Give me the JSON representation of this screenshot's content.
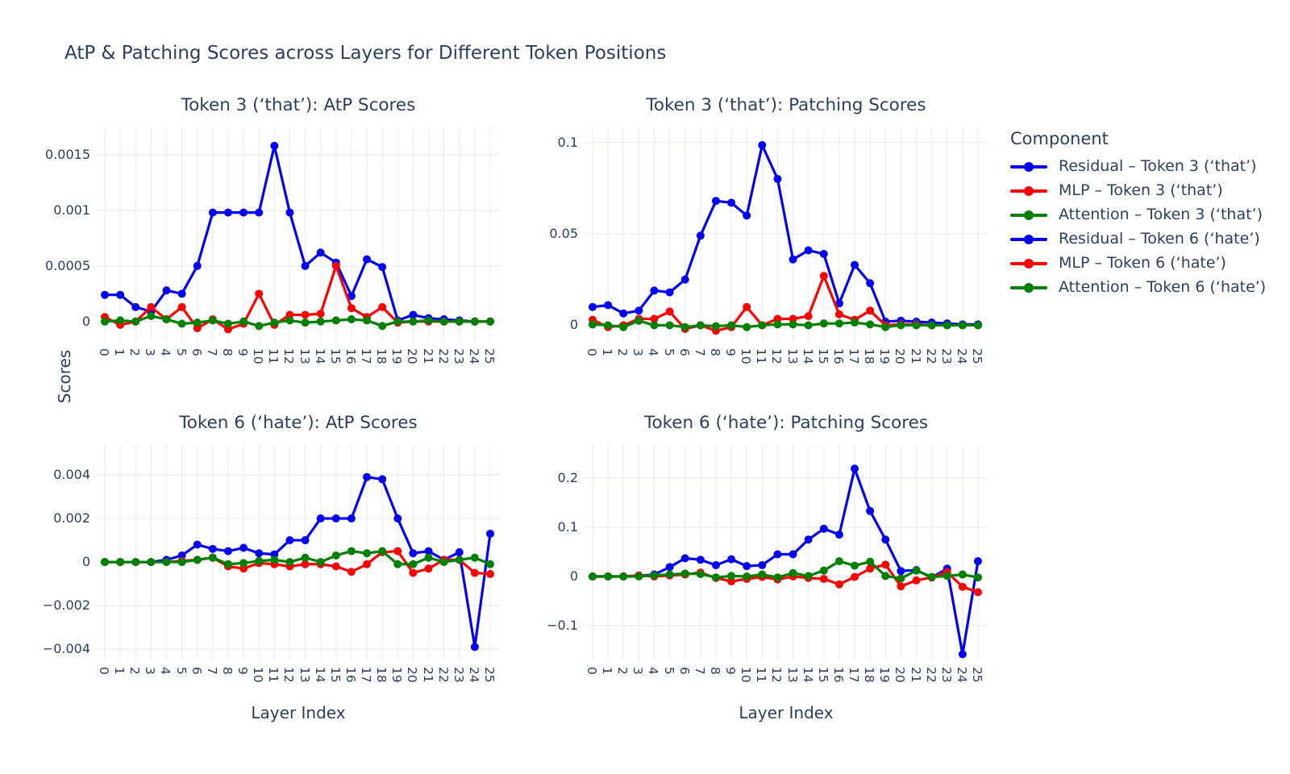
{
  "page": {
    "title_main": "AtP & Patching Scores across Layers for Different Token Positions"
  },
  "colors": {
    "residual": "#0000f5",
    "mlp": "#ff0000",
    "attention": "#008000",
    "text": "#2a3f5f",
    "grid": "#e8edf6"
  },
  "axis": {
    "x_label": "Layer Index",
    "y_label": "Scores"
  },
  "legend": {
    "title": "Component",
    "items": [
      {
        "label": "Residual – Token 3 (‘that’)",
        "color_key": "residual"
      },
      {
        "label": "MLP – Token 3 (‘that’)",
        "color_key": "mlp"
      },
      {
        "label": "Attention – Token 3 (‘that’)",
        "color_key": "attention"
      },
      {
        "label": "Residual – Token 6 (‘hate’)",
        "color_key": "residual"
      },
      {
        "label": "MLP – Token 6 (‘hate’)",
        "color_key": "mlp"
      },
      {
        "label": "Attention – Token 6 (‘hate’)",
        "color_key": "attention"
      }
    ]
  },
  "chart_data": [
    {
      "id": "token3-atp",
      "type": "line",
      "title": "Token 3 (‘that’): AtP Scores",
      "xlabel": "Layer Index",
      "x": [
        0,
        1,
        2,
        3,
        4,
        5,
        6,
        7,
        8,
        9,
        10,
        11,
        12,
        13,
        14,
        15,
        16,
        17,
        18,
        19,
        20,
        21,
        22,
        23,
        24,
        25
      ],
      "ylim": [
        -0.00019,
        0.001746
      ],
      "grid": true,
      "yticks": [
        {
          "v": 0,
          "label": "0"
        },
        {
          "v": 0.0005,
          "label": "0.0005"
        },
        {
          "v": 0.001,
          "label": "0.001"
        },
        {
          "v": 0.0015,
          "label": "0.0015"
        }
      ],
      "series": [
        {
          "name": "Residual – Token 3 (‘that’)",
          "color_key": "residual",
          "values": [
            0.00024,
            0.00024,
            0.00013,
            9e-05,
            0.00028,
            0.00025,
            0.0005,
            0.00098,
            0.00098,
            0.00098,
            0.00098,
            0.00158,
            0.00098,
            0.0005,
            0.00062,
            0.00053,
            0.00023,
            0.00056,
            0.00049,
            1e-05,
            6e-05,
            3e-05,
            2e-05,
            1e-05,
            0,
            0
          ]
        },
        {
          "name": "MLP – Token 3 (‘that’)",
          "color_key": "mlp",
          "values": [
            4e-05,
            -3e-05,
            0,
            0.00013,
            2e-05,
            0.00013,
            -6e-05,
            2e-05,
            -7e-05,
            -2e-05,
            0.00025,
            -3e-05,
            6e-05,
            6e-05,
            7e-05,
            0.0005,
            0.00012,
            4e-05,
            0.00013,
            -1e-05,
            0,
            0,
            0,
            0,
            0,
            0
          ]
        },
        {
          "name": "Attention – Token 3 (‘that’)",
          "color_key": "attention",
          "values": [
            0,
            1e-05,
            0,
            5e-05,
            2e-05,
            -2e-05,
            -1e-05,
            1e-05,
            -2e-05,
            0,
            -4e-05,
            -1e-05,
            1e-05,
            -1e-05,
            0,
            1e-05,
            2e-05,
            1e-05,
            -4e-05,
            0,
            0,
            1e-05,
            0,
            0,
            0,
            0
          ]
        }
      ]
    },
    {
      "id": "token3-patching",
      "type": "line",
      "title": "Token 3 (‘that’): Patching Scores",
      "xlabel": "Layer Index",
      "x": [
        0,
        1,
        2,
        3,
        4,
        5,
        6,
        7,
        8,
        9,
        10,
        11,
        12,
        13,
        14,
        15,
        16,
        17,
        18,
        19,
        20,
        21,
        22,
        23,
        24,
        25
      ],
      "ylim": [
        -0.0095,
        0.1082
      ],
      "grid": true,
      "yticks": [
        {
          "v": 0,
          "label": "0"
        },
        {
          "v": 0.05,
          "label": "0.05"
        },
        {
          "v": 0.1,
          "label": "0.1"
        }
      ],
      "series": [
        {
          "name": "Residual – Token 3 (‘that’)",
          "color_key": "residual",
          "values": [
            0.01,
            0.011,
            0.0065,
            0.008,
            0.019,
            0.018,
            0.025,
            0.049,
            0.068,
            0.067,
            0.06,
            0.0985,
            0.08,
            0.036,
            0.041,
            0.039,
            0.012,
            0.033,
            0.023,
            0.002,
            0.0025,
            0.002,
            0.0015,
            0.001,
            0.0005,
            0.0005
          ]
        },
        {
          "name": "MLP – Token 3 (‘that’)",
          "color_key": "mlp",
          "values": [
            0.003,
            -0.001,
            0,
            0.0035,
            0.0035,
            0.0075,
            -0.002,
            0,
            -0.003,
            -0.001,
            0.01,
            0,
            0.0035,
            0.0035,
            0.005,
            0.027,
            0.006,
            0.003,
            0.008,
            0,
            0.0005,
            0.0005,
            0,
            0,
            0,
            0
          ]
        },
        {
          "name": "Attention – Token 3 (‘that’)",
          "color_key": "attention",
          "values": [
            0.0005,
            0,
            -0.001,
            0.0025,
            0,
            0,
            -0.001,
            0,
            -0.0005,
            0,
            -0.001,
            0,
            0.0005,
            0.0005,
            0,
            0.001,
            0.001,
            0.0015,
            0.0005,
            -0.001,
            0,
            0,
            0,
            0,
            0,
            0
          ]
        }
      ]
    },
    {
      "id": "token6-atp",
      "type": "line",
      "title": "Token 6 (‘hate’): AtP Scores",
      "xlabel": "Layer Index",
      "x": [
        0,
        1,
        2,
        3,
        4,
        5,
        6,
        7,
        8,
        9,
        10,
        11,
        12,
        13,
        14,
        15,
        16,
        17,
        18,
        19,
        20,
        21,
        22,
        23,
        24,
        25
      ],
      "ylim": [
        -0.00455,
        0.00537
      ],
      "grid": true,
      "yticks": [
        {
          "v": -0.004,
          "label": "−0.004"
        },
        {
          "v": -0.002,
          "label": "−0.002"
        },
        {
          "v": 0,
          "label": "0"
        },
        {
          "v": 0.002,
          "label": "0.002"
        },
        {
          "v": 0.004,
          "label": "0.004"
        }
      ],
      "series": [
        {
          "name": "Residual – Token 6 (‘hate’)",
          "color_key": "residual",
          "values": [
            0,
            0,
            0,
            0,
            0.0001,
            0.0003,
            0.0008,
            0.0006,
            0.0005,
            0.00065,
            0.0004,
            0.00035,
            0.001,
            0.001,
            0.002,
            0.002,
            0.002,
            0.0039,
            0.0038,
            0.002,
            0.0004,
            0.0005,
            0.0001,
            0.00045,
            -0.0039,
            0.0013
          ]
        },
        {
          "name": "MLP – Token 6 (‘hate’)",
          "color_key": "mlp",
          "values": [
            0,
            0,
            0,
            0,
            0,
            5e-05,
            0.0001,
            0.0002,
            -0.0002,
            -0.0003,
            -5e-05,
            -0.0001,
            -0.0002,
            -0.0001,
            -0.0001,
            -0.0002,
            -0.00045,
            -0.0001,
            0.00045,
            0.0005,
            -0.0005,
            -0.0003,
            0.0001,
            0.0001,
            -0.0005,
            -0.00055
          ]
        },
        {
          "name": "Attention – Token 6 (‘hate’)",
          "color_key": "attention",
          "values": [
            0,
            0,
            0,
            0,
            0,
            0,
            0.0001,
            0.0002,
            -0.0001,
            -5e-05,
            5e-05,
            0.0001,
            0,
            0.0002,
            0,
            0.0003,
            0.0005,
            0.0004,
            0.0005,
            -0.0001,
            -0.0001,
            0.0002,
            0,
            0.0001,
            0.0002,
            -0.0001
          ]
        }
      ]
    },
    {
      "id": "token6-patching",
      "type": "line",
      "title": "Token 6 (‘hate’): Patching Scores",
      "xlabel": "Layer Index",
      "x": [
        0,
        1,
        2,
        3,
        4,
        5,
        6,
        7,
        8,
        9,
        10,
        11,
        12,
        13,
        14,
        15,
        16,
        17,
        18,
        19,
        20,
        21,
        22,
        23,
        24,
        25
      ],
      "ylim": [
        -0.172,
        0.267
      ],
      "grid": true,
      "yticks": [
        {
          "v": -0.1,
          "label": "−0.1"
        },
        {
          "v": 0,
          "label": "0"
        },
        {
          "v": 0.1,
          "label": "0.1"
        },
        {
          "v": 0.2,
          "label": "0.2"
        }
      ],
      "series": [
        {
          "name": "Residual – Token 6 (‘hate’)",
          "color_key": "residual",
          "values": [
            0,
            0,
            0,
            0.001,
            0.004,
            0.019,
            0.037,
            0.034,
            0.023,
            0.035,
            0.021,
            0.023,
            0.045,
            0.045,
            0.075,
            0.097,
            0.085,
            0.219,
            0.133,
            0.075,
            0.011,
            0.013,
            -0.002,
            0.016,
            -0.158,
            0.031
          ]
        },
        {
          "name": "MLP – Token 6 (‘hate’)",
          "color_key": "mlp",
          "values": [
            0,
            0,
            0,
            0.002,
            0,
            0.002,
            0.004,
            0.008,
            -0.003,
            -0.01,
            -0.005,
            -0.001,
            -0.006,
            0,
            -0.003,
            -0.005,
            -0.016,
            -0.001,
            0.016,
            0.024,
            -0.02,
            -0.008,
            -0.002,
            0.009,
            -0.021,
            -0.032
          ]
        },
        {
          "name": "Attention – Token 6 (‘hate’)",
          "color_key": "attention",
          "values": [
            0,
            0,
            0,
            0,
            0.002,
            0.004,
            0.006,
            0.005,
            -0.002,
            0.001,
            0,
            0.004,
            -0.002,
            0.007,
            0.001,
            0.012,
            0.031,
            0.022,
            0.03,
            0.001,
            -0.004,
            0.012,
            -0.001,
            0.001,
            0.004,
            -0.002
          ]
        }
      ]
    }
  ]
}
